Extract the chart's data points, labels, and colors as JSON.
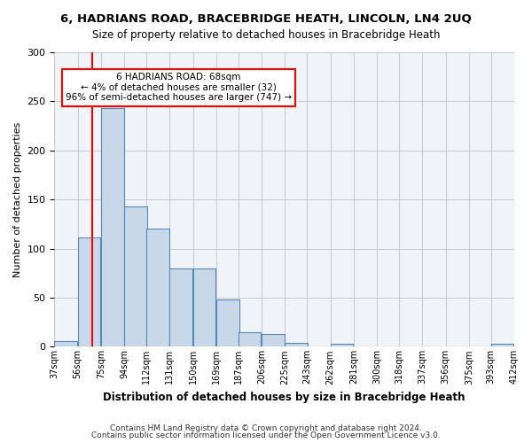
{
  "title1": "6, HADRIANS ROAD, BRACEBRIDGE HEATH, LINCOLN, LN4 2UQ",
  "title2": "Size of property relative to detached houses in Bracebridge Heath",
  "xlabel": "Distribution of detached houses by size in Bracebridge Heath",
  "ylabel": "Number of detached properties",
  "footnote1": "Contains HM Land Registry data © Crown copyright and database right 2024.",
  "footnote2": "Contains public sector information licensed under the Open Government Licence v3.0.",
  "annotation_title": "6 HADRIANS ROAD: 68sqm",
  "annotation_line2": "← 4% of detached houses are smaller (32)",
  "annotation_line3": "96% of semi-detached houses are larger (747) →",
  "property_size": 68,
  "bar_color": "#c8d8e8",
  "bar_edge_color": "#5588bb",
  "marker_color": "red",
  "annotation_box_color": "red",
  "bins": [
    37,
    56,
    75,
    94,
    112,
    131,
    150,
    169,
    187,
    206,
    225,
    243,
    262,
    281,
    300,
    318,
    337,
    356,
    375,
    393,
    412
  ],
  "bin_labels": [
    "37sqm",
    "56sqm",
    "75sqm",
    "94sqm",
    "112sqm",
    "131sqm",
    "150sqm",
    "169sqm",
    "187sqm",
    "206sqm",
    "225sqm",
    "243sqm",
    "262sqm",
    "281sqm",
    "300sqm",
    "318sqm",
    "337sqm",
    "356sqm",
    "375sqm",
    "393sqm",
    "412sqm"
  ],
  "values": [
    6,
    111,
    243,
    143,
    120,
    80,
    80,
    48,
    15,
    13,
    4,
    0,
    3,
    0,
    0,
    0,
    0,
    0,
    0,
    3
  ],
  "ylim": [
    0,
    300
  ],
  "yticks": [
    0,
    50,
    100,
    150,
    200,
    250,
    300
  ],
  "grid_color": "#cccccc",
  "background_color": "#f0f4f8"
}
